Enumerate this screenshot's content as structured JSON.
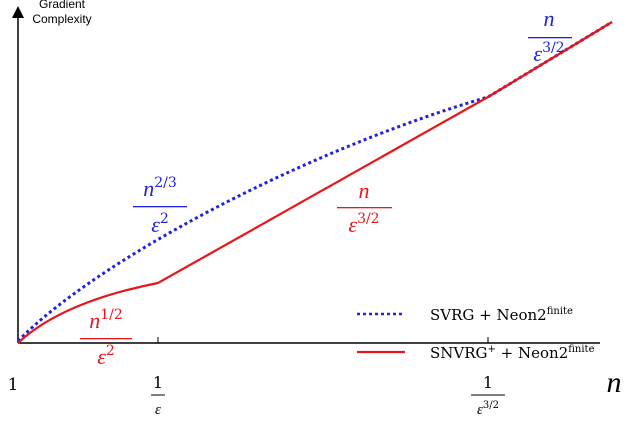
{
  "axes": {
    "y_label": [
      "Gradient",
      "Complexity"
    ],
    "x_label": "n",
    "x_ticks": [
      {
        "numerator": "1"
      },
      {
        "numerator": "1",
        "denominator": "ε"
      },
      {
        "numerator": "1",
        "denominator": "ε",
        "denominator_sup": "3/2"
      }
    ]
  },
  "annotations": [
    {
      "numerator": "n",
      "denominator": "ε",
      "denominator_sup": "3/2"
    },
    {
      "numerator": "n",
      "numerator_sup": "2/3",
      "denominator": "ε",
      "denominator_sup": "2"
    },
    {
      "numerator": "n",
      "denominator": "ε",
      "denominator_sup": "3/2"
    },
    {
      "numerator": "n",
      "numerator_sup": "1/2",
      "denominator": "ε",
      "denominator_sup": "2"
    }
  ],
  "legend": [
    {
      "text": "SVRG + Neon2",
      "sup": "finite"
    },
    {
      "text": "SNVRG",
      "text_sup": "+",
      "rest": " + Neon2",
      "sup": "finite"
    }
  ]
}
